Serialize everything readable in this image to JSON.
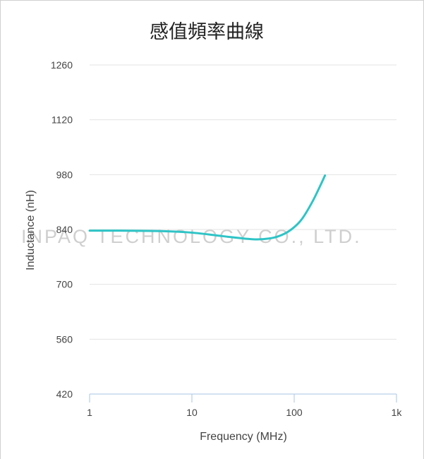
{
  "chart_data": {
    "type": "line",
    "title": "感值頻率曲線",
    "xlabel": "Frequency (MHz)",
    "ylabel": "Inductance (nH)",
    "x_scale": "log",
    "xlim": [
      1,
      1000
    ],
    "ylim": [
      420,
      1260
    ],
    "x_ticks": [
      "1",
      "10",
      "100",
      "1k"
    ],
    "y_ticks": [
      "420",
      "560",
      "700",
      "840",
      "980",
      "1120",
      "1260"
    ],
    "grid": true,
    "series": [
      {
        "color": "#2ec4c6",
        "x": [
          1,
          2,
          5,
          10,
          20,
          40,
          60,
          80,
          100,
          120,
          150,
          180,
          200
        ],
        "y": [
          837,
          837,
          836,
          832,
          823,
          815,
          818,
          829,
          846,
          868,
          910,
          952,
          978
        ]
      }
    ]
  },
  "watermark": "INPAQ TECHNOLOGY CO., LTD.",
  "colors": {
    "line": "#2ec4c6",
    "grid": "#e3e3e3",
    "axis": "#a9c4e4"
  }
}
